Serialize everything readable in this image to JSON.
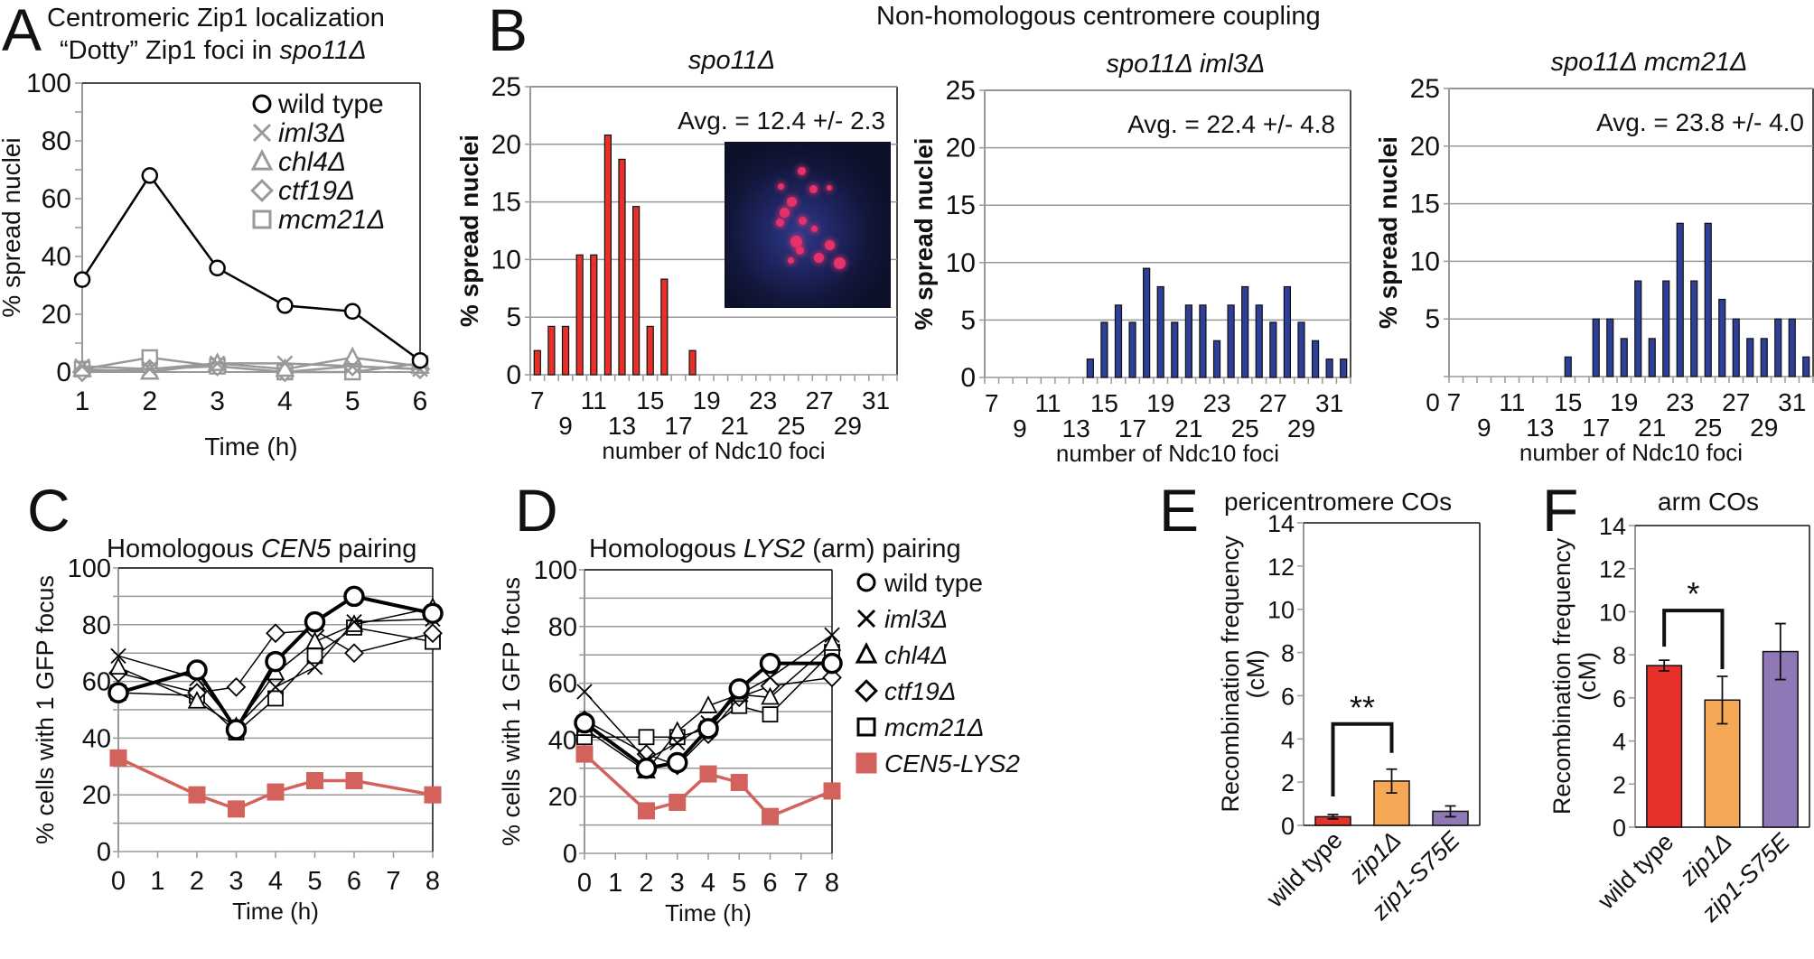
{
  "figure": {
    "panel_letters": [
      "A",
      "B",
      "C",
      "D",
      "E",
      "F"
    ]
  },
  "chart_data": [
    {
      "id": "A",
      "type": "line",
      "title_line1": "Centromeric Zip1 localization",
      "title_line2_prefix": "“Dotty” Zip1 foci in ",
      "title_line2_italic": "spo11Δ",
      "xlabel": "Time (h)",
      "ylabel": "% spread nuclei",
      "x": [
        1,
        2,
        3,
        4,
        5,
        6
      ],
      "ylim": [
        0,
        100
      ],
      "yticks": [
        0,
        20,
        40,
        60,
        80,
        100
      ],
      "legend_position": "top-right",
      "series": [
        {
          "name": "wild type",
          "marker": "circle",
          "color": "#000000",
          "values": [
            32,
            68,
            36,
            23,
            21,
            4
          ]
        },
        {
          "name": "iml3Δ",
          "marker": "x",
          "color": "#999999",
          "values": [
            2,
            1,
            3,
            3,
            2,
            1
          ]
        },
        {
          "name": "chl4Δ",
          "marker": "triangle",
          "color": "#999999",
          "values": [
            1,
            0,
            3,
            1,
            5,
            2
          ]
        },
        {
          "name": "ctf19Δ",
          "marker": "diamond",
          "color": "#999999",
          "values": [
            0,
            1,
            2,
            0,
            2,
            1
          ]
        },
        {
          "name": "mcm21Δ",
          "marker": "square",
          "color": "#999999",
          "values": [
            1,
            5,
            2,
            0,
            0,
            3
          ]
        }
      ]
    },
    {
      "id": "B1",
      "type": "bar",
      "group_title": "Non-homologous centromere coupling",
      "title": "spo11Δ",
      "annotation": "Avg. = 12.4 +/- 2.3",
      "xlabel": "number of Ndc10 foci",
      "ylabel": "% spread nuclei",
      "ylim": [
        0,
        25
      ],
      "yticks": [
        0,
        5,
        10,
        15,
        20,
        25
      ],
      "xticks_top": [
        "7",
        "11",
        "15",
        "19",
        "23",
        "27",
        "31"
      ],
      "xticks_bottom": [
        "9",
        "13",
        "17",
        "21",
        "25",
        "29"
      ],
      "color": "#e8302a",
      "categories": [
        7,
        8,
        9,
        10,
        11,
        12,
        13,
        14,
        15,
        16,
        17,
        18
      ],
      "values": [
        2.1,
        4.2,
        4.2,
        10.4,
        10.4,
        20.8,
        18.7,
        14.6,
        4.2,
        8.3,
        0,
        2.1
      ],
      "inset_image": "fluorescence micrograph of spread nucleus with red Ndc10 foci"
    },
    {
      "id": "B2",
      "type": "bar",
      "title": "spo11Δ iml3Δ",
      "annotation": "Avg. = 22.4 +/- 4.8",
      "xlabel": "number of Ndc10 foci",
      "ylabel": "% spread nuclei",
      "ylim": [
        0,
        25
      ],
      "yticks": [
        0,
        5,
        10,
        15,
        20,
        25
      ],
      "xticks_top": [
        "7",
        "11",
        "15",
        "19",
        "23",
        "27",
        "31"
      ],
      "xticks_bottom": [
        "9",
        "13",
        "17",
        "21",
        "25",
        "29"
      ],
      "color": "#2e3f99",
      "categories": [
        14,
        15,
        16,
        17,
        18,
        19,
        20,
        21,
        22,
        23,
        24,
        25,
        26,
        27,
        28,
        29,
        30,
        31,
        32
      ],
      "values": [
        1.6,
        4.8,
        6.3,
        4.8,
        9.5,
        7.9,
        4.8,
        6.3,
        6.3,
        3.2,
        6.3,
        7.9,
        6.3,
        4.8,
        7.9,
        4.8,
        3.2,
        1.6,
        1.6
      ]
    },
    {
      "id": "B3",
      "type": "bar",
      "title": "spo11Δ mcm21Δ",
      "annotation": "Avg. = 23.8 +/- 4.0",
      "xlabel": "number of Ndc10 foci",
      "ylabel": "% spread nuclei",
      "ylim": [
        0,
        25
      ],
      "yticks": [
        0,
        5,
        10,
        15,
        20,
        25
      ],
      "xticks_top": [
        "0 7",
        "11",
        "15",
        "19",
        "23",
        "27",
        "31"
      ],
      "xticks_bottom": [
        "9",
        "13",
        "17",
        "21",
        "25",
        "29"
      ],
      "color": "#2e3f99",
      "categories": [
        15,
        16,
        17,
        18,
        19,
        20,
        21,
        22,
        23,
        24,
        25,
        26,
        27,
        28,
        29,
        30,
        31,
        32
      ],
      "values": [
        1.7,
        0,
        5.0,
        5.0,
        3.3,
        8.3,
        3.3,
        8.3,
        13.3,
        8.3,
        13.3,
        6.7,
        5.0,
        3.3,
        3.3,
        5.0,
        5.0,
        1.7
      ]
    },
    {
      "id": "C",
      "type": "line",
      "title_prefix": "Homologous ",
      "title_italic": "CEN5",
      "title_suffix": " pairing",
      "xlabel": "Time (h)",
      "ylabel": "% cells with 1 GFP focus",
      "x": [
        0,
        2,
        3,
        4,
        5,
        6,
        8
      ],
      "xticks": [
        "0",
        "1",
        "2",
        "3",
        "4",
        "5",
        "6",
        "7",
        "8"
      ],
      "ylim": [
        0,
        100
      ],
      "yticks": [
        0,
        20,
        40,
        60,
        80,
        100
      ],
      "series": [
        {
          "name": "wild type",
          "marker": "circle",
          "color": "#000000",
          "values": [
            56,
            64,
            43,
            67,
            81,
            90,
            84
          ]
        },
        {
          "name": "iml3Δ",
          "marker": "x",
          "color": "#000000",
          "values": [
            69,
            61,
            44,
            58,
            65,
            81,
            82
          ]
        },
        {
          "name": "chl4Δ",
          "marker": "triangle",
          "color": "#000000",
          "values": [
            65,
            53,
            44,
            63,
            74,
            80,
            86
          ]
        },
        {
          "name": "ctf19Δ",
          "marker": "diamond",
          "color": "#000000",
          "values": [
            63,
            56,
            58,
            77,
            78,
            70,
            77
          ]
        },
        {
          "name": "mcm21Δ",
          "marker": "square",
          "color": "#000000",
          "values": [
            56,
            55,
            42,
            54,
            69,
            79,
            74
          ]
        },
        {
          "name": "CEN5-LYS2",
          "marker": "filled-square",
          "color": "#d4625c",
          "values": [
            33,
            20,
            15,
            21,
            25,
            25,
            20
          ]
        }
      ]
    },
    {
      "id": "D",
      "type": "line",
      "title_prefix": "Homologous ",
      "title_italic": "LYS2",
      "title_suffix": " (arm) pairing",
      "xlabel": "Time (h)",
      "ylabel": "% cells with 1 GFP focus",
      "x": [
        0,
        2,
        3,
        4,
        5,
        6,
        8
      ],
      "xticks": [
        "0",
        "1",
        "2",
        "3",
        "4",
        "5",
        "6",
        "7",
        "8"
      ],
      "ylim": [
        0,
        100
      ],
      "yticks": [
        0,
        20,
        40,
        60,
        80,
        100
      ],
      "legend_position": "right",
      "series": [
        {
          "name": "wild type",
          "marker": "circle",
          "color": "#000000",
          "values": [
            46,
            30,
            32,
            44,
            58,
            67,
            67
          ]
        },
        {
          "name": "iml3Δ",
          "marker": "x",
          "color": "#000000",
          "values": [
            57,
            33,
            39,
            46,
            56,
            62,
            77
          ]
        },
        {
          "name": "chl4Δ",
          "marker": "triangle",
          "color": "#000000",
          "values": [
            44,
            29,
            43,
            52,
            56,
            55,
            74
          ]
        },
        {
          "name": "ctf19Δ",
          "marker": "diamond",
          "color": "#000000",
          "values": [
            47,
            35,
            31,
            42,
            55,
            59,
            62
          ]
        },
        {
          "name": "mcm21Δ",
          "marker": "square",
          "color": "#000000",
          "values": [
            41,
            41,
            41,
            44,
            52,
            49,
            71
          ]
        },
        {
          "name": "CEN5-LYS2",
          "marker": "filled-square",
          "color": "#d4625c",
          "values": [
            35,
            15,
            18,
            28,
            25,
            13,
            22
          ]
        }
      ]
    },
    {
      "id": "E",
      "type": "bar",
      "title": "pericentromere COs",
      "ylabel_line1": "Recombination frequency",
      "ylabel_line2": "(cM)",
      "ylim": [
        0,
        14
      ],
      "yticks": [
        0,
        2,
        4,
        6,
        8,
        10,
        12,
        14
      ],
      "categories": [
        "wild type",
        "zip1Δ",
        "zip1-S75E"
      ],
      "values": [
        0.4,
        2.05,
        0.65
      ],
      "errors": [
        0.1,
        0.55,
        0.25
      ],
      "colors": [
        "#e8302a",
        "#f5a855",
        "#8f78b5"
      ],
      "significance": {
        "from": 0,
        "to": 1,
        "label": "**"
      }
    },
    {
      "id": "F",
      "type": "bar",
      "title": "arm COs",
      "ylabel_line1": "Recombination frequency",
      "ylabel_line2": "(cM)",
      "ylim": [
        0,
        14
      ],
      "yticks": [
        0,
        2,
        4,
        6,
        8,
        10,
        12,
        14
      ],
      "categories": [
        "wild type",
        "zip1Δ",
        "zip1-S75E"
      ],
      "values": [
        7.5,
        5.9,
        8.15
      ],
      "errors": [
        0.25,
        1.1,
        1.3
      ],
      "colors": [
        "#e8302a",
        "#f5a855",
        "#8f78b5"
      ],
      "significance": {
        "from": 0,
        "to": 1,
        "label": "*"
      }
    }
  ]
}
